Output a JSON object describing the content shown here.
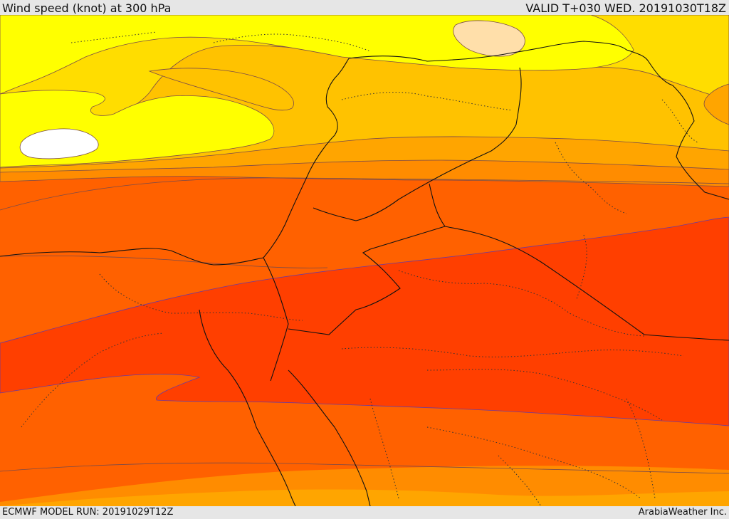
{
  "header": {
    "title": "Wind speed (knot) at 300 hPa",
    "valid": "VALID T+030 WED. 20191030T18Z"
  },
  "footer": {
    "model_run": "ECMWF MODEL RUN: 20191029T12Z",
    "credit": "ArabiaWeather Inc."
  },
  "map": {
    "variable": "wind speed",
    "unit": "knot",
    "level": "300 hPa",
    "shading": {
      "colors": [
        "#ffffff",
        "#ffff00",
        "#ffdd00",
        "#ffc200",
        "#ffa500",
        "#ff8c00",
        "#ff6100",
        "#ff3f00",
        "#ffdfaa"
      ]
    },
    "line_colors": {
      "contour": "#7a4a4a",
      "border": "#111111",
      "admin": "#333333"
    }
  }
}
